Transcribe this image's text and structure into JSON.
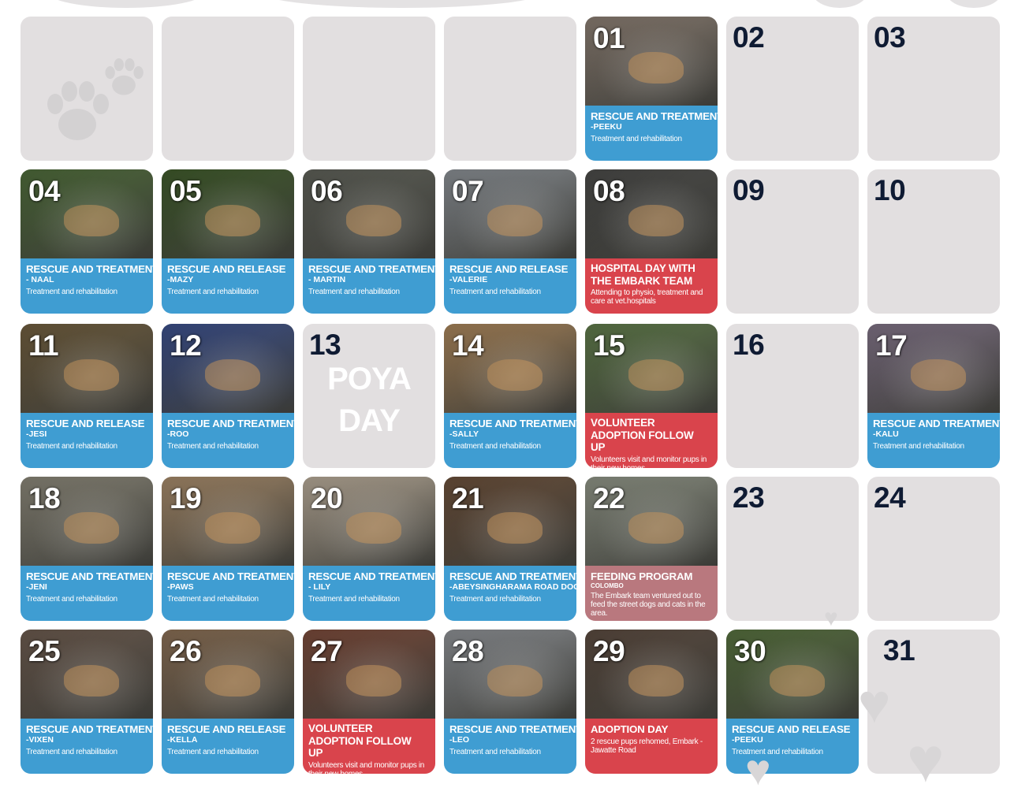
{
  "calendar": {
    "empty_count": 4,
    "days": [
      {
        "num": "01",
        "title": "RESCUE AND  TREATMENT",
        "name": "-PEEKU",
        "desc": "Treatment and rehabilitation",
        "color": "blue",
        "photo": "#8a7d72"
      },
      {
        "num": "02",
        "empty": true
      },
      {
        "num": "03",
        "empty": true
      },
      {
        "num": "04",
        "title": "RESCUE AND TREATMENT",
        "name": "- NAAL",
        "desc": "Treatment and rehabilitation",
        "color": "blue",
        "photo": "#4e6b3a"
      },
      {
        "num": "05",
        "title": "RESCUE AND RELEASE",
        "name": "-MAZY",
        "desc": "Treatment and rehabilitation",
        "color": "blue",
        "photo": "#3f5a2b"
      },
      {
        "num": "06",
        "title": "RESCUE AND TREATMENT",
        "name": "-  MARTIN",
        "desc": "Treatment and rehabilitation",
        "color": "blue",
        "photo": "#5e6058"
      },
      {
        "num": "07",
        "title": "RESCUE AND RELEASE",
        "name": "-VALERIE",
        "desc": "Treatment and rehabilitation",
        "color": "blue",
        "photo": "#8a8f94"
      },
      {
        "num": "08",
        "title": "HOSPITAL DAY WITH THE EMBARK TEAM",
        "name": "",
        "desc": "Attending to physio, treatment and care at vet.hospitals",
        "color": "red",
        "photo": "#4a4a48"
      },
      {
        "num": "09",
        "empty": true
      },
      {
        "num": "10",
        "empty": true
      },
      {
        "num": "11",
        "title": "RESCUE AND RELEASE",
        "name": "-JESI",
        "desc": "Treatment and rehabilitation",
        "color": "blue",
        "photo": "#6f5d3e"
      },
      {
        "num": "12",
        "title": "RESCUE AND TREATMENT",
        "name": "-ROO",
        "desc": "Treatment and rehabilitation",
        "color": "blue",
        "photo": "#3b4f8a"
      },
      {
        "num": "13",
        "empty": true,
        "poya": [
          "POYA",
          "DAY"
        ]
      },
      {
        "num": "14",
        "title": "RESCUE AND TREATMENT",
        "name": "-SALLY",
        "desc": "Treatment and rehabilitation",
        "color": "blue",
        "photo": "#a8845a"
      },
      {
        "num": "15",
        "title": "VOLUNTEER ADOPTION FOLLOW UP",
        "name": "",
        "desc": "Volunteers visit and monitor pups in their new homes",
        "color": "red",
        "photo": "#5f7a4a"
      },
      {
        "num": "16",
        "empty": true
      },
      {
        "num": "17",
        "title": "RESCUE AND TREATMENT",
        "name": "-KALU",
        "desc": "Treatment and rehabilitation",
        "color": "blue",
        "photo": "#7f7285"
      },
      {
        "num": "18",
        "title": "RESCUE AND TREATMENT",
        "name": "-JENI",
        "desc": "Treatment and rehabilitation",
        "color": "blue",
        "photo": "#8a8678"
      },
      {
        "num": "19",
        "title": "RESCUE AND TREATMENT",
        "name": "-PAWS",
        "desc": "Treatment and rehabilitation",
        "color": "blue",
        "photo": "#a68a6a"
      },
      {
        "num": "20",
        "title": "RESCUE AND TREATMENT",
        "name": "- LILY",
        "desc": "Treatment and rehabilitation",
        "color": "blue",
        "photo": "#b7aa98"
      },
      {
        "num": "21",
        "title": "RESCUE AND TREATMENT",
        "name": "-ABEYSINGHARAMA ROAD DOG",
        "desc": "Treatment and rehabilitation",
        "color": "blue",
        "photo": "#6a4f3a"
      },
      {
        "num": "22",
        "title": "FEEDING PROGRAM",
        "name": "COLOMBO",
        "desc": "The Embark team ventured out to feed the street dogs and cats in the area.",
        "color": "rose",
        "photo": "#8f9486"
      },
      {
        "num": "23",
        "empty": true
      },
      {
        "num": "24",
        "empty": true
      },
      {
        "num": "25",
        "title": "RESCUE AND TREATMENT",
        "name": "-VIXEN",
        "desc": "Treatment and rehabilitation",
        "color": "blue",
        "photo": "#6b5a4e"
      },
      {
        "num": "26",
        "title": "RESCUE AND RELEASE",
        "name": "-KELLA",
        "desc": "Treatment and rehabilitation",
        "color": "blue",
        "photo": "#8a6f55"
      },
      {
        "num": "27",
        "title": "VOLUNTEER ADOPTION FOLLOW UP",
        "name": "",
        "desc": "Volunteers visit and monitor pups in their new homes",
        "color": "red",
        "photo": "#7a4a3a"
      },
      {
        "num": "28",
        "title": "RESCUE AND TREATMENT",
        "name": "-LEO",
        "desc": "Treatment and rehabilitation",
        "color": "blue",
        "photo": "#8d9094"
      },
      {
        "num": "29",
        "title": "ADOPTION DAY",
        "name": "",
        "desc": "2 rescue pups rehomed, Embark - Jawatte Road",
        "color": "red",
        "photo": "#5a4a3f"
      },
      {
        "num": "30",
        "title": "RESCUE AND RELEASE",
        "name": "-PEEKU",
        "desc": "Treatment and rehabilitation",
        "color": "blue",
        "photo": "#56703e"
      },
      {
        "num": "31",
        "empty": true
      }
    ]
  },
  "colors": {
    "band_blue": "#3f9dd2",
    "band_red": "#d9444c",
    "band_rose": "#b9787e",
    "empty_cell": "#e2dfe0",
    "date_dark": "#0f1b33"
  },
  "icons": [
    "paw-print-icon",
    "heart-icon"
  ]
}
